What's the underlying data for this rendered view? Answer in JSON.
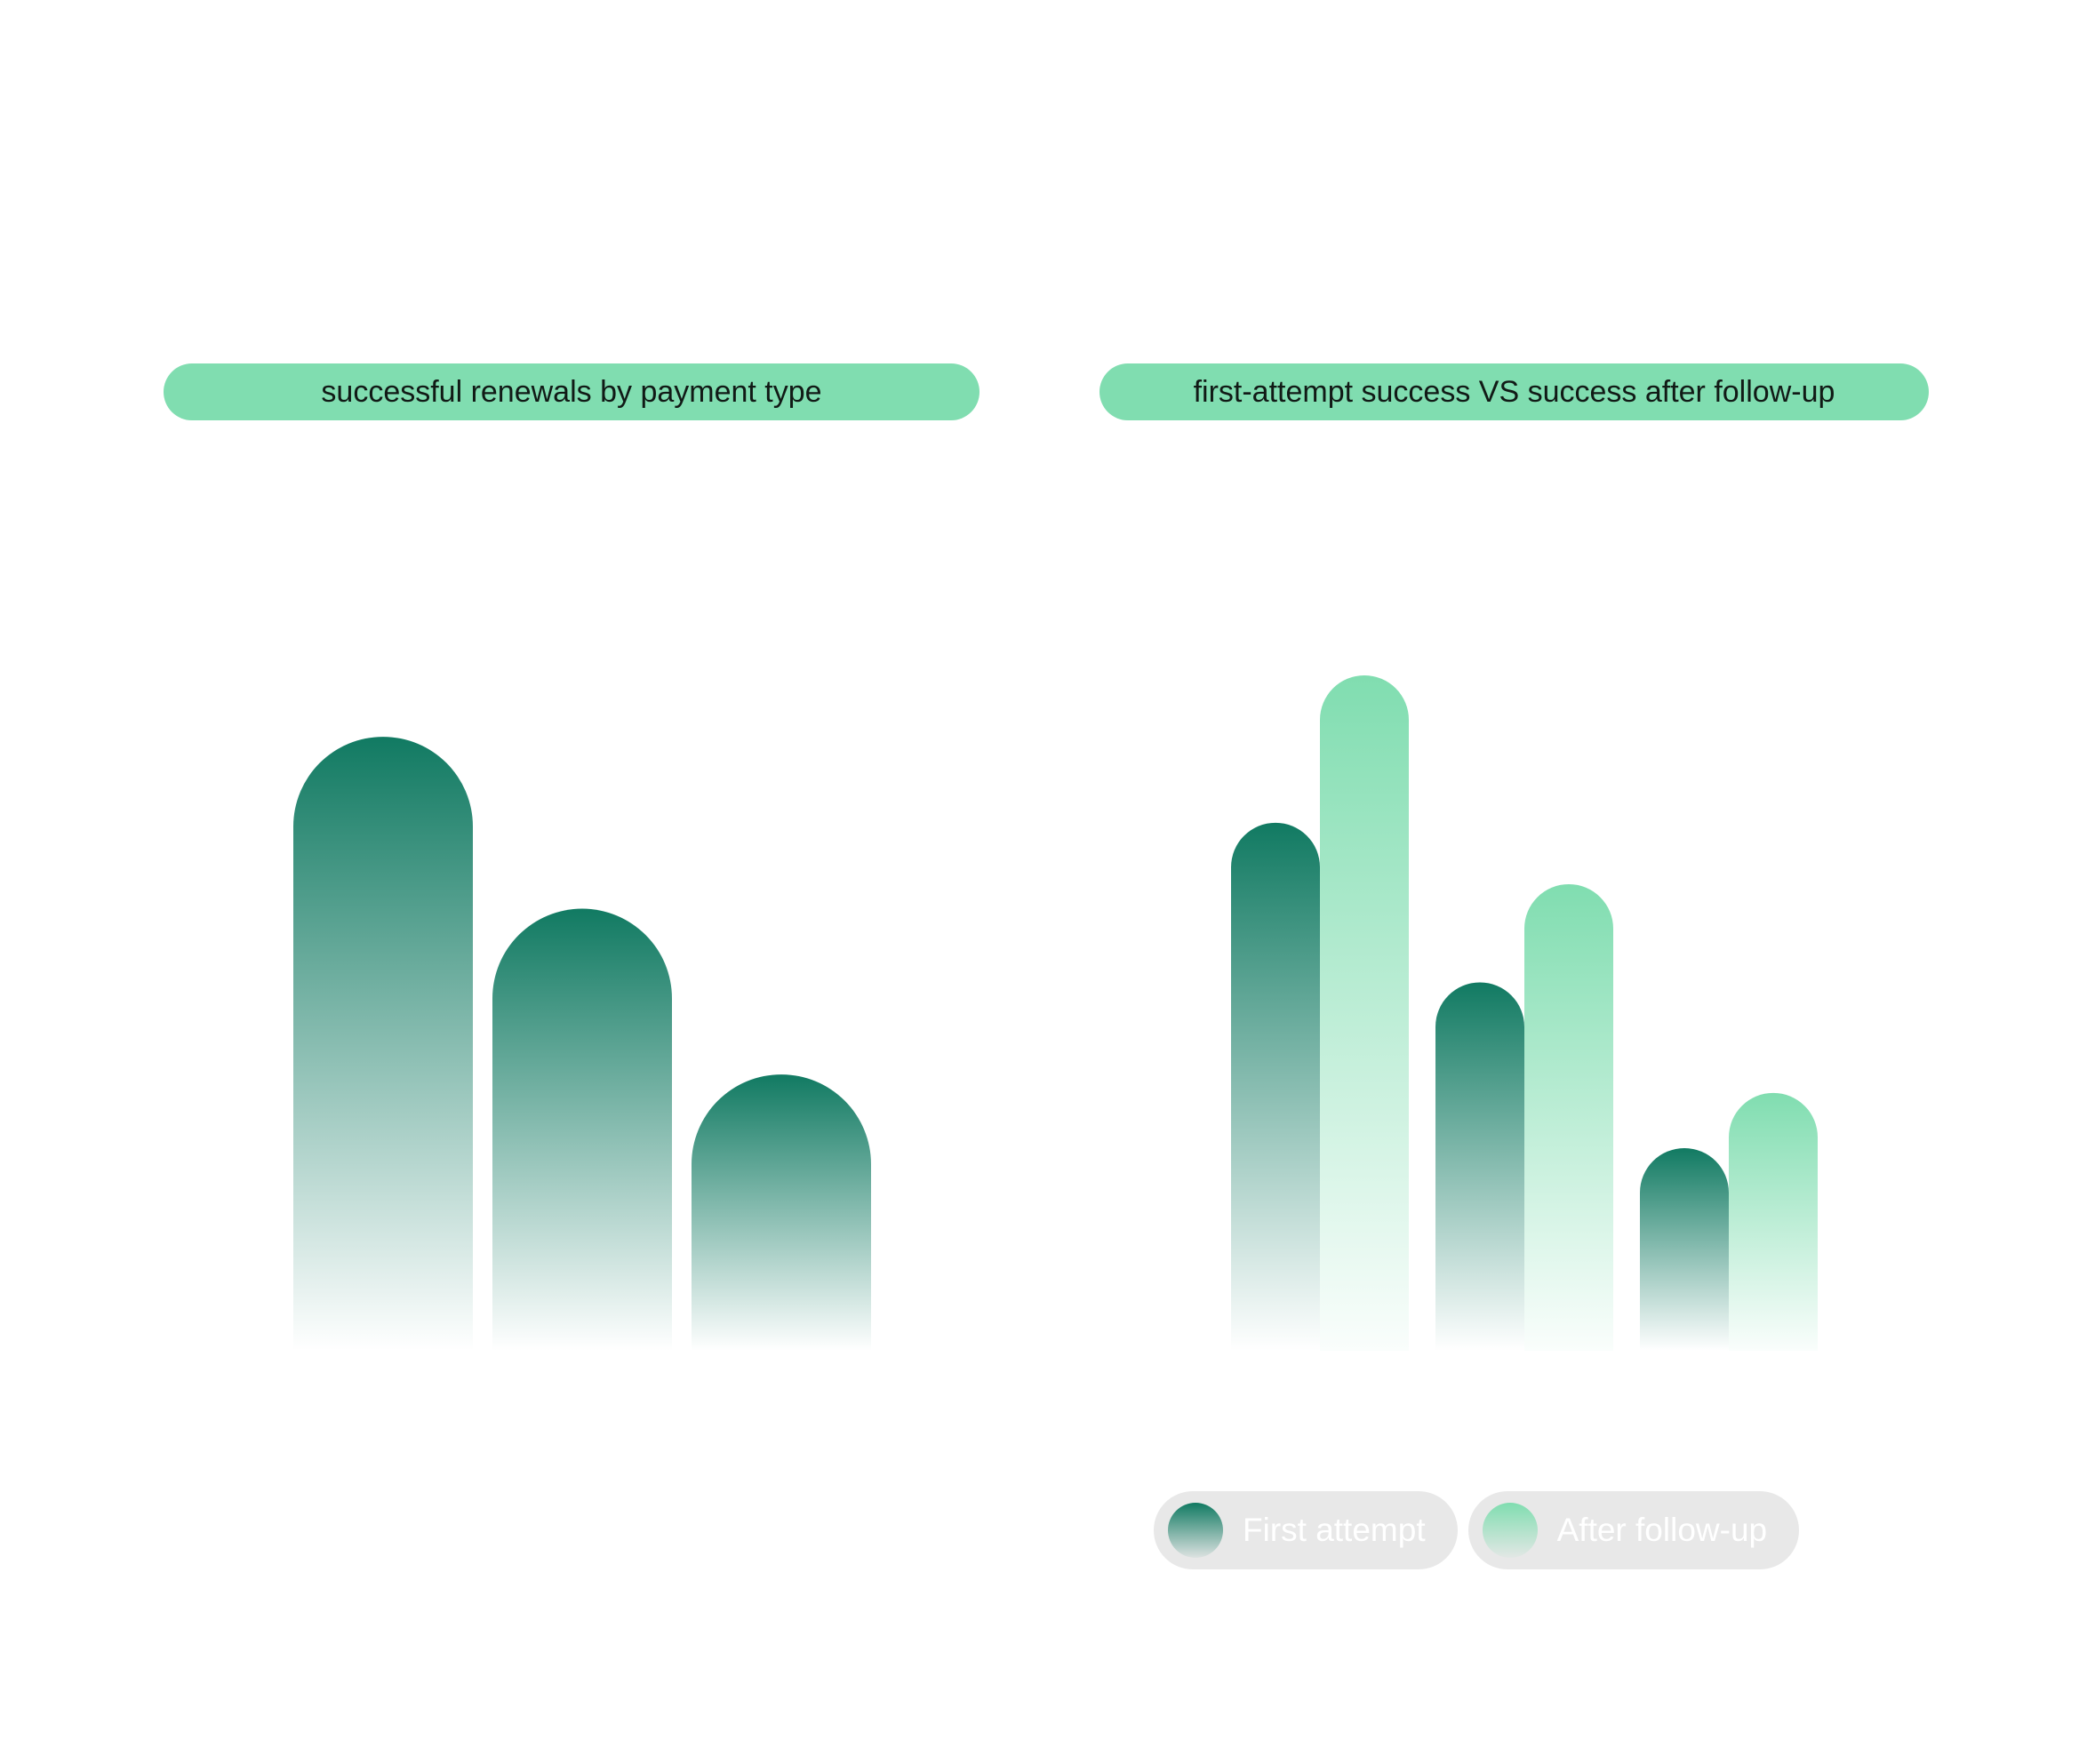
{
  "colors": {
    "dark_green": "#117a62",
    "light_green": "#80ddb0",
    "title_pill_bg": "#80ddb0",
    "legend_bg": "#e8e8e8",
    "legend_text": "#ffffff"
  },
  "chart_data": [
    {
      "type": "bar",
      "title": "successful renewals by payment type",
      "categories": [
        "",
        "",
        ""
      ],
      "series": [
        {
          "values": [
            100,
            72,
            45
          ],
          "color": "#117a62"
        }
      ],
      "ylim": [
        0,
        110
      ],
      "grid": false,
      "axes_visible": false
    },
    {
      "type": "bar",
      "title": "first-attempt success VS success after follow-up",
      "categories": [
        "",
        "",
        ""
      ],
      "series": [
        {
          "name": "First attempt",
          "values": [
            86,
            60,
            33
          ],
          "color": "#117a62"
        },
        {
          "name": "After follow-up",
          "values": [
            110,
            76,
            42
          ],
          "color": "#80ddb0"
        }
      ],
      "ylim": [
        0,
        110
      ],
      "grid": false,
      "axes_visible": false,
      "legend": "bottom"
    }
  ],
  "legend": {
    "items": [
      {
        "label": "First attempt",
        "color": "#117a62"
      },
      {
        "label": "After follow-up",
        "color": "#80ddb0"
      }
    ]
  }
}
